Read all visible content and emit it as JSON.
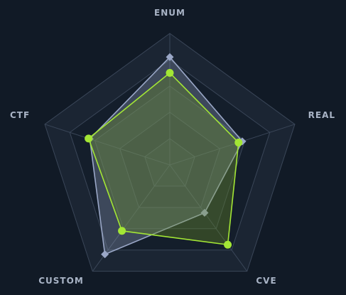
{
  "chart_data": {
    "type": "radar",
    "axes": [
      "ENUM",
      "REAL",
      "CVE",
      "CUSTOM",
      "CTF"
    ],
    "range": [
      0,
      100
    ],
    "rings": 5,
    "grid": true,
    "legend": "none",
    "series": [
      {
        "values": [
          82,
          58,
          45,
          84,
          64
        ],
        "color": "#9aa7c7",
        "fill": "#8a97b4",
        "marker": "diamond"
      },
      {
        "values": [
          70,
          55,
          75,
          62,
          65
        ],
        "color": "#a3e635",
        "fill": "#6b8e23",
        "marker": "circle"
      }
    ]
  }
}
